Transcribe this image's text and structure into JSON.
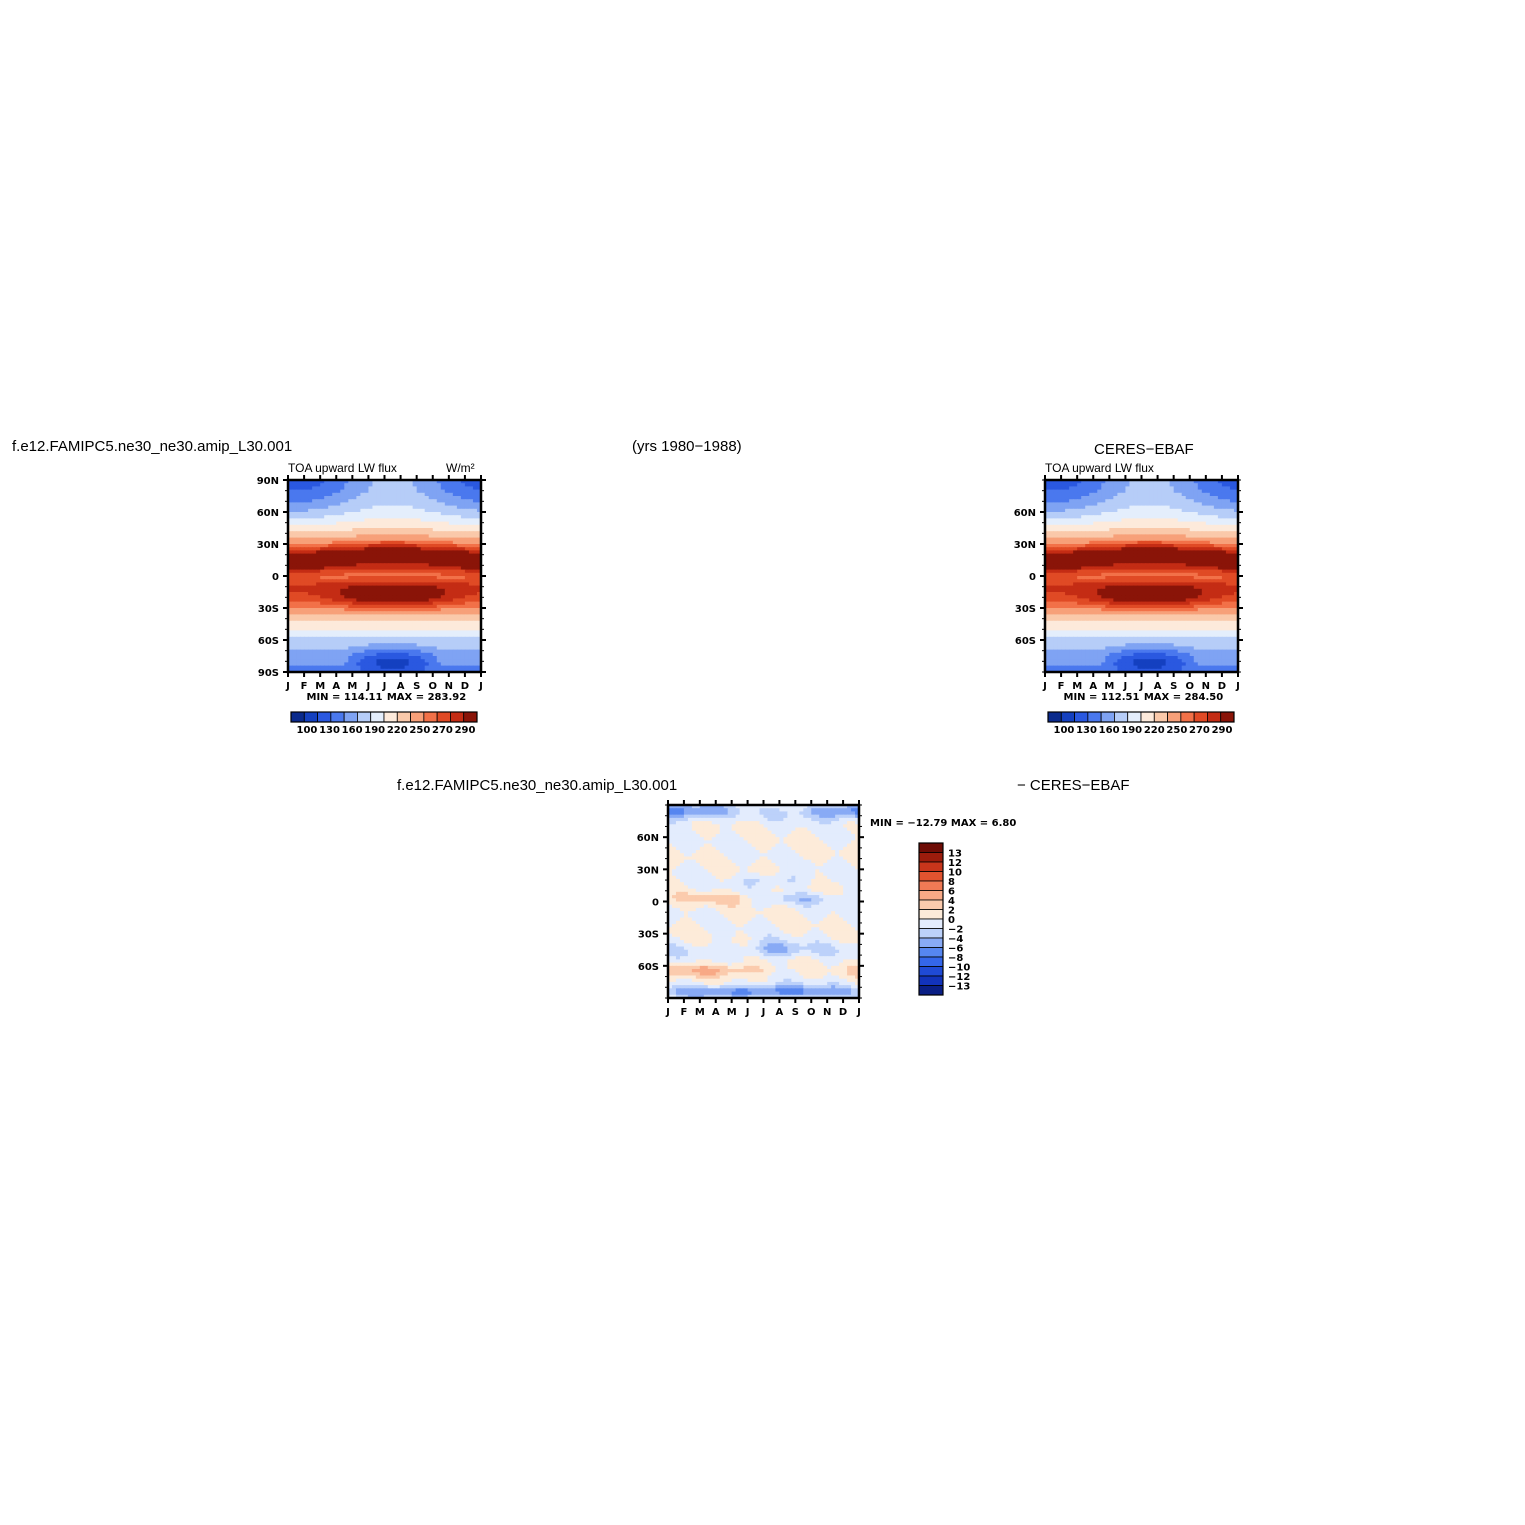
{
  "header": {
    "model_case": "f.e12.FAMIPC5.ne30_ne30.amip_L30.001",
    "years": "(yrs 1980−1988)",
    "obs_name": "CERES−EBAF",
    "diff_case": "f.e12.FAMIPC5.ne30_ne30.amip_L30.001",
    "diff_obs": "− CERES−EBAF"
  },
  "palettes": {
    "abs": [
      "#0a2a8c",
      "#1440c0",
      "#2a58e0",
      "#4a78ee",
      "#7fa3f3",
      "#b6cdf8",
      "#e4eefc",
      "#fdeadb",
      "#fac9aa",
      "#f7a079",
      "#f27148",
      "#e04a25",
      "#c42c14",
      "#8a1408"
    ],
    "diff": [
      "#0a1f85",
      "#1233bb",
      "#1f4ad6",
      "#3466ea",
      "#5686f0",
      "#88aaf5",
      "#bcd1fa",
      "#e3ecfd",
      "#fdebd9",
      "#fbcbad",
      "#f8a986",
      "#f07a55",
      "#e2532f",
      "#c8351b",
      "#9c1c0c",
      "#6e0c05"
    ]
  },
  "chart_data": [
    {
      "type": "heatmap",
      "title": "TOA upward LW flux",
      "units": "W/m²",
      "x": [
        "J",
        "F",
        "M",
        "A",
        "M",
        "J",
        "J",
        "A",
        "S",
        "O",
        "N",
        "D",
        "J"
      ],
      "y_ticks": [
        "90N",
        "60N",
        "30N",
        "0",
        "30S",
        "60S",
        "90S"
      ],
      "ylim": [
        -90,
        90
      ],
      "min_label": "MIN = 114.11",
      "max_label": "MAX = 283.92",
      "min": 114.11,
      "max": 283.92,
      "colorbar_levels": [
        "100",
        "130",
        "160",
        "190",
        "220",
        "250",
        "270",
        "290"
      ]
    },
    {
      "type": "heatmap",
      "title": "TOA upward LW flux",
      "units": "",
      "x": [
        "J",
        "F",
        "M",
        "A",
        "M",
        "J",
        "J",
        "A",
        "S",
        "O",
        "N",
        "D",
        "J"
      ],
      "y_ticks": [
        "60N",
        "30N",
        "0",
        "30S",
        "60S"
      ],
      "ylim": [
        -90,
        90
      ],
      "min_label": "MIN = 112.51",
      "max_label": "MAX = 284.50",
      "min": 112.51,
      "max": 284.5,
      "colorbar_levels": [
        "100",
        "130",
        "160",
        "190",
        "220",
        "250",
        "270",
        "290"
      ]
    },
    {
      "type": "heatmap",
      "title": "",
      "x": [
        "J",
        "F",
        "M",
        "A",
        "M",
        "J",
        "J",
        "A",
        "S",
        "O",
        "N",
        "D",
        "J"
      ],
      "y_ticks": [
        "60N",
        "30N",
        "0",
        "30S",
        "60S"
      ],
      "ylim": [
        -90,
        90
      ],
      "minmax_label": "MIN = −12.79 MAX =    6.80",
      "min": -12.79,
      "max": 6.8,
      "colorbar_levels": [
        "13",
        "12",
        "10",
        "8",
        "6",
        "4",
        "2",
        "0",
        "−2",
        "−4",
        "−6",
        "−8",
        "−10",
        "−12",
        "−13"
      ]
    }
  ]
}
